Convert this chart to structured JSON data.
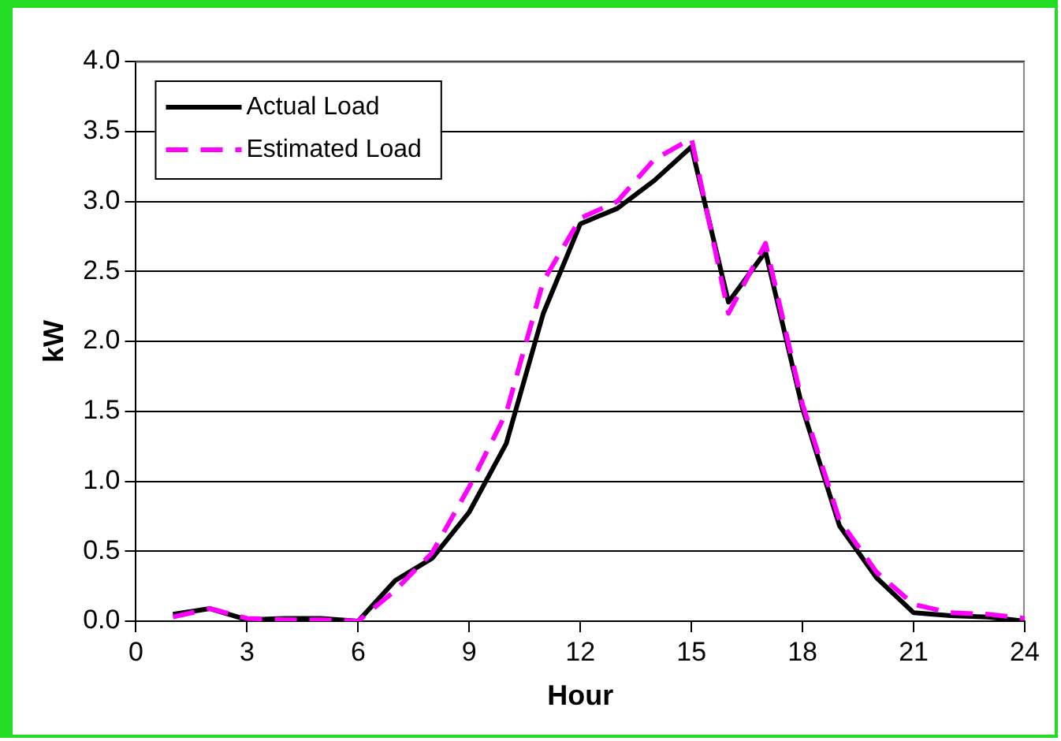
{
  "chart_data": {
    "type": "line",
    "xlabel": "Hour",
    "ylabel": "kW",
    "x": [
      1,
      2,
      3,
      4,
      5,
      6,
      7,
      8,
      9,
      10,
      11,
      12,
      13,
      14,
      15,
      16,
      17,
      18,
      19,
      20,
      21,
      22,
      23,
      24
    ],
    "series": [
      {
        "name": "Actual Load",
        "color": "#000000",
        "line_style": "solid",
        "values": [
          0.05,
          0.09,
          0.01,
          0.02,
          0.02,
          0.0,
          0.29,
          0.45,
          0.78,
          1.27,
          2.2,
          2.84,
          2.95,
          3.15,
          3.39,
          2.28,
          2.64,
          1.52,
          0.68,
          0.31,
          0.06,
          0.04,
          0.03,
          0.0
        ]
      },
      {
        "name": "Estimated Load",
        "color": "#ff00ff",
        "line_style": "dashed",
        "values": [
          0.03,
          0.09,
          0.02,
          0.01,
          0.01,
          0.0,
          0.22,
          0.49,
          0.96,
          1.49,
          2.43,
          2.88,
          3.0,
          3.3,
          3.45,
          2.2,
          2.7,
          1.55,
          0.72,
          0.35,
          0.12,
          0.06,
          0.05,
          0.02
        ]
      }
    ],
    "xlim": [
      0,
      24
    ],
    "xticks": [
      0,
      3,
      6,
      9,
      12,
      15,
      18,
      21,
      24
    ],
    "ylim": [
      0,
      4
    ],
    "yticks": [
      {
        "value": 0,
        "label": "0.0"
      },
      {
        "value": 0.5,
        "label": "0.5"
      },
      {
        "value": 1,
        "label": "1.0"
      },
      {
        "value": 1.5,
        "label": "1.5"
      },
      {
        "value": 2,
        "label": "2.0"
      },
      {
        "value": 2.5,
        "label": "2.5"
      },
      {
        "value": 3,
        "label": "3.0"
      },
      {
        "value": 3.5,
        "label": "3.5"
      },
      {
        "value": 4,
        "label": "4.0"
      }
    ],
    "grid": "y",
    "legend": "top left",
    "marker": "none"
  }
}
